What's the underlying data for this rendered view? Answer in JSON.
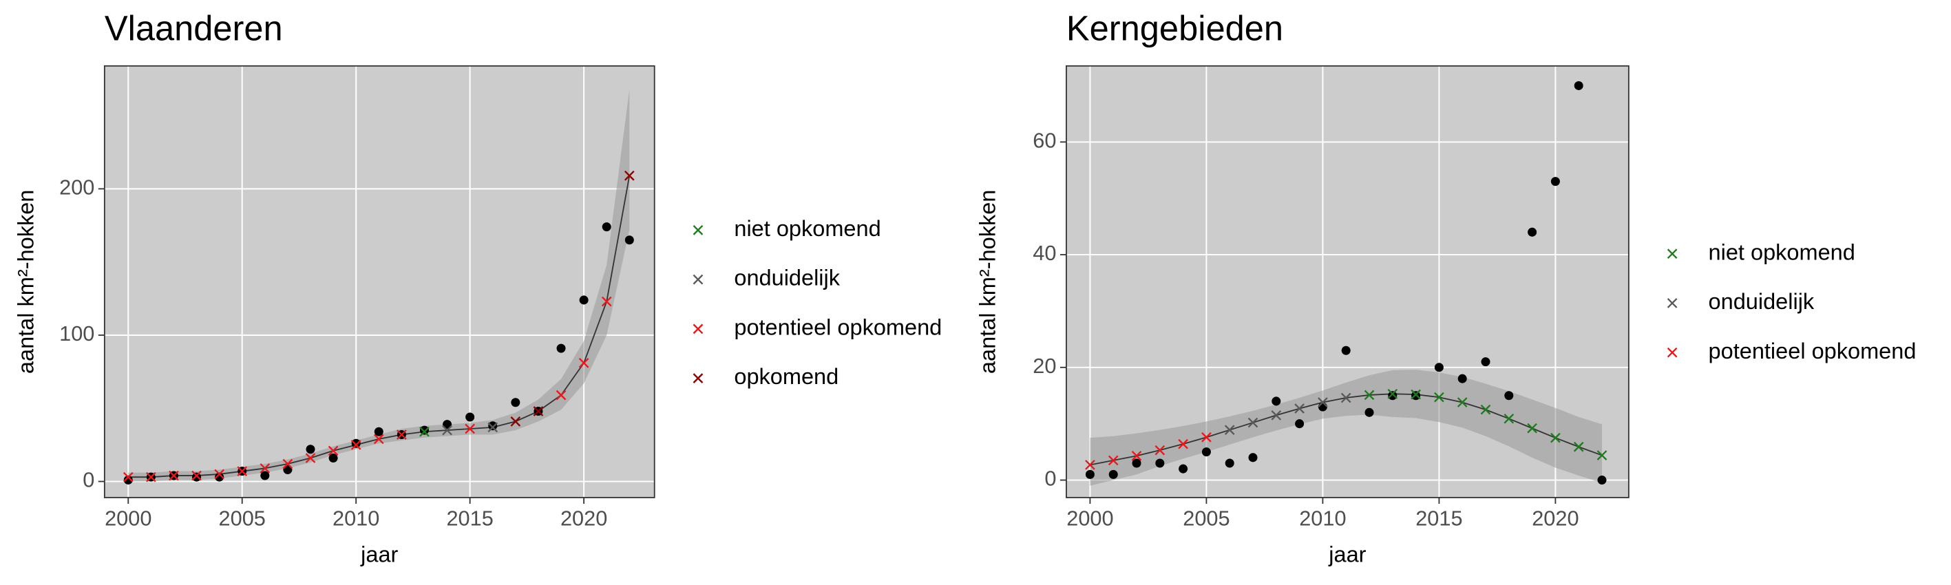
{
  "chart_data": [
    {
      "type": "trend",
      "title": "Vlaanderen",
      "x_label": "jaar",
      "y_label": "aantal km²-hokken",
      "x": [
        2000,
        2001,
        2002,
        2003,
        2004,
        2005,
        2006,
        2007,
        2008,
        2009,
        2010,
        2011,
        2012,
        2013,
        2014,
        2015,
        2016,
        2017,
        2018,
        2019,
        2020,
        2021,
        2022
      ],
      "observed": [
        1,
        3,
        4,
        3,
        3,
        7,
        4,
        8,
        22,
        16,
        26,
        34,
        32,
        35,
        39,
        44,
        38,
        54,
        48,
        91,
        124,
        174,
        165
      ],
      "observed_color": "#000000",
      "band_lower": [
        0,
        0,
        1,
        1,
        2,
        4,
        6,
        9,
        13,
        18,
        22,
        26,
        28,
        30,
        31,
        32,
        32,
        35,
        41,
        49,
        67,
        100,
        172
      ],
      "band_upper": [
        6,
        6,
        7,
        7,
        8,
        10,
        12,
        15,
        19,
        24,
        28,
        32,
        36,
        38,
        39,
        40,
        42,
        47,
        56,
        70,
        96,
        148,
        268
      ],
      "series": [
        {
          "name": "niet opkomend",
          "color": "#1f7a1f",
          "values": [
            null,
            null,
            null,
            null,
            null,
            null,
            null,
            null,
            null,
            null,
            null,
            null,
            null,
            34,
            null,
            null,
            null,
            null,
            null,
            null,
            null,
            null,
            null
          ]
        },
        {
          "name": "onduidelijk",
          "color": "#595959",
          "values": [
            null,
            null,
            null,
            null,
            null,
            null,
            null,
            null,
            null,
            null,
            null,
            null,
            null,
            null,
            35,
            null,
            37,
            null,
            null,
            null,
            null,
            null,
            null
          ]
        },
        {
          "name": "potentieel opkomend",
          "color": "#e8191c",
          "values": [
            3,
            3,
            4,
            4,
            5,
            7,
            9,
            12,
            16,
            21,
            25,
            29,
            32,
            null,
            null,
            36,
            null,
            null,
            null,
            59,
            81,
            123,
            null
          ]
        },
        {
          "name": "opkomend",
          "color": "#8b0000",
          "values": [
            null,
            null,
            null,
            null,
            null,
            null,
            null,
            null,
            null,
            null,
            null,
            null,
            null,
            null,
            null,
            null,
            null,
            41,
            48,
            null,
            null,
            null,
            209
          ]
        }
      ],
      "xlim": [
        1998.96,
        2023.1
      ],
      "ylim": [
        -11,
        284
      ],
      "xticks": [
        2000,
        2005,
        2010,
        2015,
        2020
      ],
      "yticks": [
        0,
        100,
        200
      ],
      "grid": true
    },
    {
      "type": "trend",
      "title": "Kerngebieden",
      "x_label": "jaar",
      "y_label": "aantal km²-hokken",
      "x": [
        2000,
        2001,
        2002,
        2003,
        2004,
        2005,
        2006,
        2007,
        2008,
        2009,
        2010,
        2011,
        2012,
        2013,
        2014,
        2015,
        2016,
        2017,
        2018,
        2019,
        2020,
        2021,
        2022
      ],
      "observed": [
        1,
        1,
        3,
        3,
        2,
        5,
        3,
        4,
        14,
        10,
        13,
        23,
        12,
        15,
        15,
        20,
        18,
        21,
        15,
        44,
        53,
        70,
        0
      ],
      "observed_color": "#000000",
      "band_lower": [
        -1,
        0,
        1,
        2.5,
        3.8,
        5,
        6.3,
        7.6,
        8.8,
        9.9,
        10.9,
        11.4,
        11.6,
        11.2,
        11,
        10.3,
        9.3,
        7.8,
        6,
        4,
        2.2,
        0.8,
        -0.5
      ],
      "band_upper": [
        7.5,
        7.8,
        8.3,
        8.9,
        9.6,
        10.4,
        11.3,
        12.3,
        13.4,
        14.6,
        15.9,
        17.3,
        18.6,
        19.5,
        19.6,
        19.1,
        18.3,
        17.1,
        15.8,
        14.3,
        12.8,
        11.2,
        9.9
      ],
      "series": [
        {
          "name": "niet opkomend",
          "color": "#1f7a1f",
          "values": [
            null,
            null,
            null,
            null,
            null,
            null,
            null,
            null,
            null,
            null,
            null,
            null,
            15.1,
            15.3,
            15.2,
            14.7,
            13.8,
            12.5,
            10.9,
            9.2,
            7.5,
            5.9,
            4.4
          ]
        },
        {
          "name": "onduidelijk",
          "color": "#595959",
          "values": [
            null,
            null,
            null,
            null,
            null,
            null,
            8.9,
            10.2,
            11.5,
            12.7,
            13.8,
            14.6,
            null,
            null,
            null,
            null,
            null,
            null,
            null,
            null,
            null,
            null,
            null
          ]
        },
        {
          "name": "potentieel opkomend",
          "color": "#e8191c",
          "values": [
            2.7,
            3.5,
            4.3,
            5.3,
            6.4,
            7.6,
            null,
            null,
            null,
            null,
            null,
            null,
            null,
            null,
            null,
            null,
            null,
            null,
            null,
            null,
            null,
            null,
            null
          ]
        }
      ],
      "xlim": [
        1998.98,
        2023.15
      ],
      "ylim": [
        -3.1,
        73.5
      ],
      "xticks": [
        2000,
        2005,
        2010,
        2015,
        2020
      ],
      "yticks": [
        0,
        20,
        40,
        60
      ],
      "grid": true
    }
  ]
}
